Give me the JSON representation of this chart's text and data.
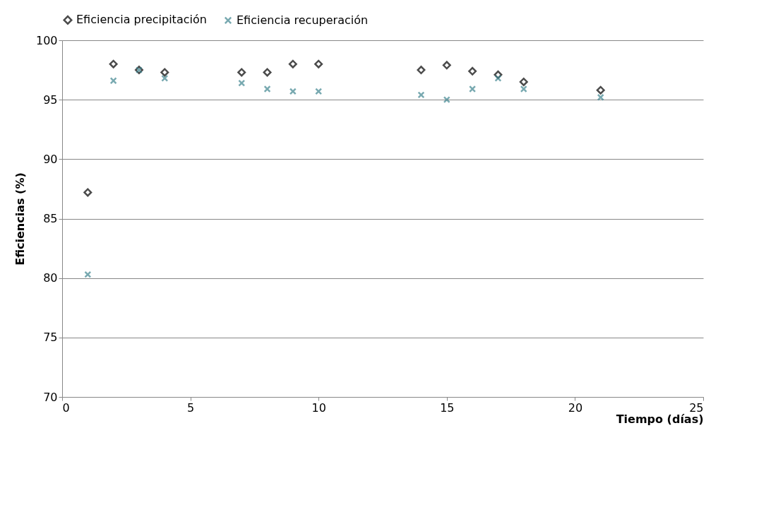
{
  "chart_data": {
    "type": "scatter",
    "xlabel": "Tiempo (días)",
    "ylabel": "Eficiencias (%)",
    "x": [
      1,
      2,
      3,
      4,
      7,
      8,
      9,
      10,
      14,
      15,
      16,
      17,
      18,
      21
    ],
    "series": [
      {
        "name": "Eficiencia precipitación",
        "color": "#000000",
        "marker": "diamond",
        "values": [
          87.2,
          98.0,
          97.5,
          97.3,
          97.3,
          97.3,
          98.0,
          98.0,
          97.5,
          97.9,
          97.4,
          97.1,
          96.5,
          95.8
        ]
      },
      {
        "name": "Eficiencia recuperación",
        "color": "#3f8590",
        "marker": "cross",
        "values": [
          80.3,
          96.6,
          97.5,
          96.8,
          96.4,
          95.9,
          95.7,
          95.7,
          95.4,
          95.0,
          95.9,
          96.8,
          95.9,
          95.2
        ]
      }
    ],
    "xlim": [
      0,
      25
    ],
    "xticks": [
      0,
      5,
      10,
      15,
      20,
      25
    ],
    "ylim": [
      70,
      100
    ],
    "yticks": [
      70,
      75,
      80,
      85,
      90,
      95,
      100
    ],
    "grid": "y",
    "legend": "top"
  }
}
